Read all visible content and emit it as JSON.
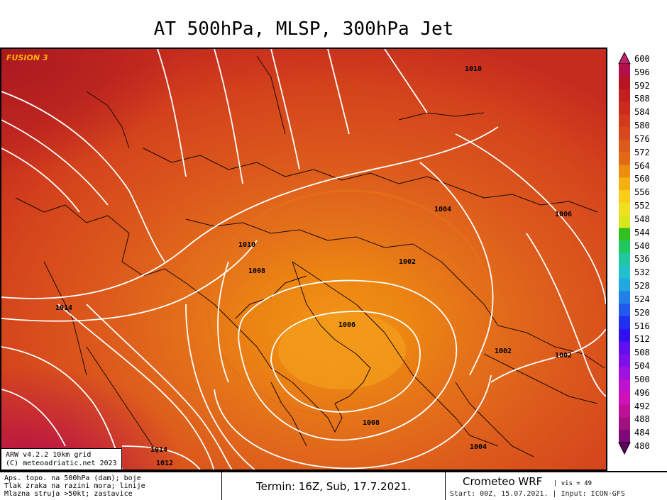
{
  "title": "AT 500hPa, MLSP, 300hPa Jet",
  "brand": "FUSION 3",
  "info": {
    "line1": "ARW v4.2.2 10km grid",
    "line2": "(C) meteoadriatic.net 2023"
  },
  "isobars": [
    {
      "label": "1010"
    },
    {
      "label": "1004"
    },
    {
      "label": "1006"
    },
    {
      "label": "1010"
    },
    {
      "label": "1008"
    },
    {
      "label": "1002"
    },
    {
      "label": "1014"
    },
    {
      "label": "1006"
    },
    {
      "label": "1002"
    },
    {
      "label": "1002"
    },
    {
      "label": "1008"
    },
    {
      "label": "1004"
    },
    {
      "label": "1014"
    },
    {
      "label": "1012"
    }
  ],
  "legend": {
    "labels": [
      "600",
      "596",
      "592",
      "588",
      "584",
      "580",
      "576",
      "572",
      "564",
      "560",
      "556",
      "552",
      "548",
      "544",
      "540",
      "536",
      "532",
      "528",
      "524",
      "520",
      "516",
      "512",
      "508",
      "504",
      "500",
      "496",
      "492",
      "488",
      "484",
      "480"
    ],
    "colors": [
      "#b3104a",
      "#b81424",
      "#c41e1e",
      "#cc2a1e",
      "#d23a1c",
      "#d8481c",
      "#dc5a1a",
      "#e26a16",
      "#ee8c10",
      "#f6b010",
      "#fccc1a",
      "#f0e020",
      "#d8e81c",
      "#30c020",
      "#20c860",
      "#20c8a0",
      "#20c0d0",
      "#20a8e0",
      "#2080e8",
      "#2058f0",
      "#2030f0",
      "#3010f0",
      "#6010f0",
      "#8010e8",
      "#a010e0",
      "#c010d0",
      "#d010b8",
      "#c01098",
      "#a01080",
      "#800878"
    ],
    "top_color": "#c8206a",
    "bottom_color": "#600060"
  },
  "footer": {
    "left_lines": [
      "Aps. topo. na 500hPa (dam); boje",
      "Tlak zraka na razini mora; linije",
      "Mlazna struja >50kt; zastavice"
    ],
    "term": "Termin: 16Z, Sub, 17.7.2021.",
    "brand": "Crometeo WRF",
    "vis": "| vis = 49",
    "start": "Start: 00Z, 15.07.2021. | Input: ICON-GFS"
  }
}
